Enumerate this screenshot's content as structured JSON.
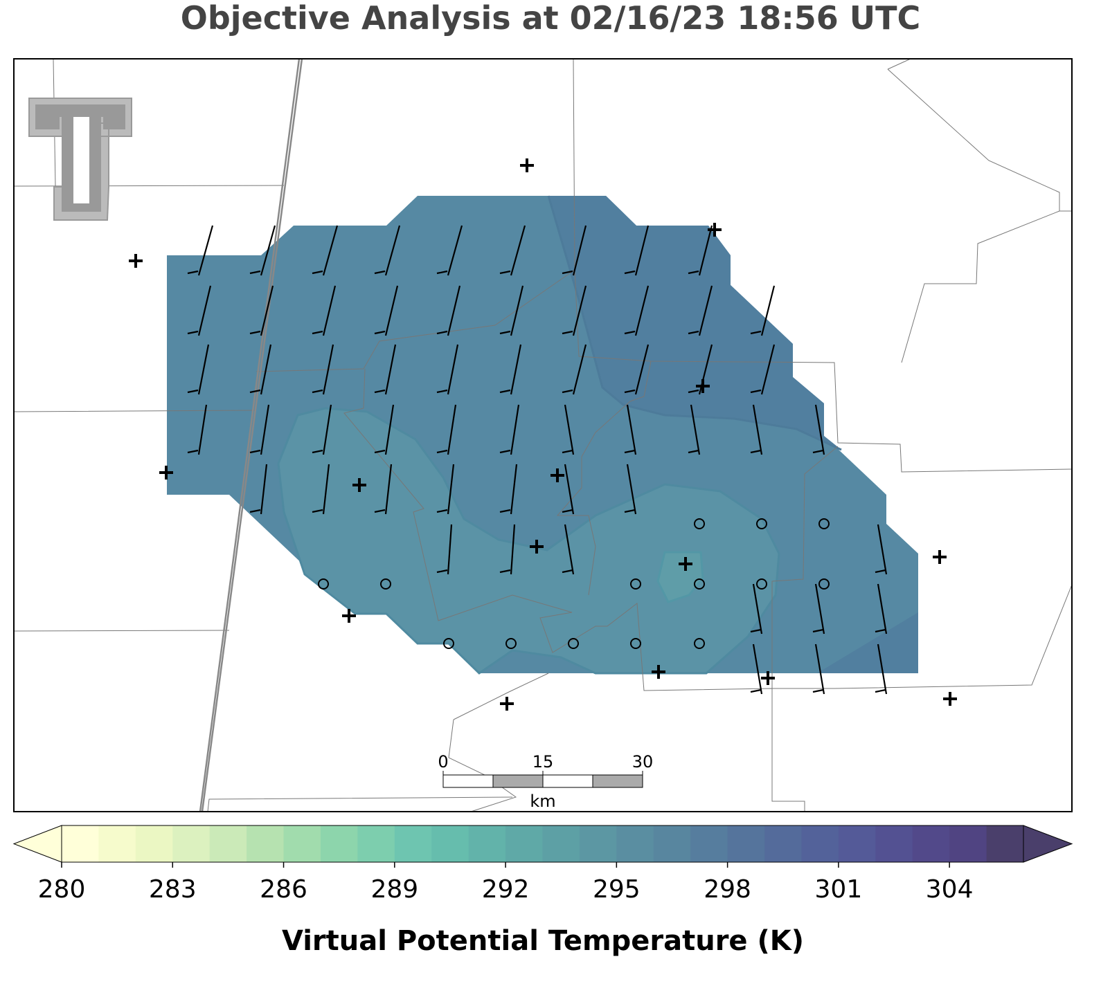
{
  "header": {
    "title": "Objective Analysis at 02/16/23 18:56 UTC"
  },
  "colorbar": {
    "label": "Virtual Potential Temperature (K)",
    "range": [
      280,
      306
    ],
    "ticks": [
      280,
      283,
      286,
      289,
      292,
      295,
      298,
      301,
      304
    ],
    "colors": [
      "#ffffd9",
      "#f6fbcc",
      "#ebf7c3",
      "#dcf1bf",
      "#cbeab8",
      "#b6e2b0",
      "#a1dcad",
      "#8dd5ac",
      "#7dceae",
      "#6ec5b0",
      "#66bdad",
      "#62b3aa",
      "#5fa9a7",
      "#5da0a5",
      "#5c97a3",
      "#5a8ea1",
      "#58869f",
      "#567d9e",
      "#55749c",
      "#546b9b",
      "#53629a",
      "#545a98",
      "#535192",
      "#52498a",
      "#504482",
      "#4a3f6b"
    ]
  },
  "scale_bar": {
    "ticks": [
      0,
      15,
      30
    ],
    "unit": "km"
  }
}
